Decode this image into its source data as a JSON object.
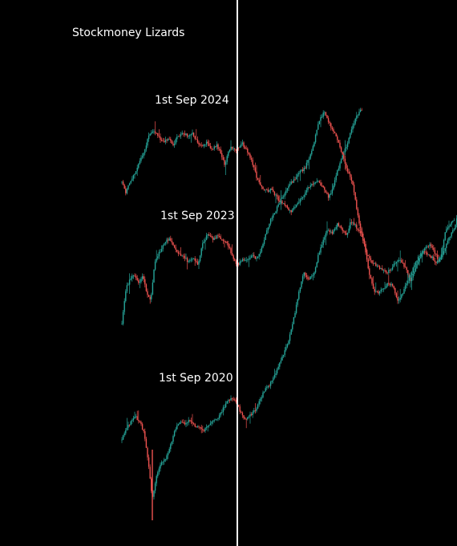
{
  "watermark": "Stockmoney Lizards",
  "colors": {
    "background": "#000000",
    "up": "#26a69a",
    "down": "#ef5350",
    "divider": "#ffffff"
  },
  "chart_data": {
    "type": "candlestick",
    "divider": "vertical white line marking each cycle's 1st September",
    "series": [
      {
        "name": "1st Sep 2024",
        "path": [
          [
            0,
            227
          ],
          [
            5,
            241
          ],
          [
            10,
            226
          ],
          [
            17,
            214
          ],
          [
            23,
            200
          ],
          [
            29,
            184
          ],
          [
            34,
            168
          ],
          [
            40,
            162
          ],
          [
            46,
            170
          ],
          [
            52,
            178
          ],
          [
            58,
            172
          ],
          [
            64,
            180
          ],
          [
            70,
            170
          ],
          [
            76,
            164
          ],
          [
            82,
            170
          ],
          [
            88,
            166
          ],
          [
            94,
            176
          ],
          [
            100,
            184
          ],
          [
            106,
            176
          ],
          [
            112,
            186
          ],
          [
            118,
            180
          ],
          [
            124,
            192
          ],
          [
            128,
            206
          ],
          [
            132,
            192
          ],
          [
            136,
            182
          ],
          [
            141,
            187
          ],
          [
            145,
            185
          ],
          [
            150,
            178
          ],
          [
            156,
            188
          ],
          [
            162,
            200
          ],
          [
            168,
            220
          ],
          [
            174,
            232
          ],
          [
            180,
            238
          ],
          [
            186,
            236
          ],
          [
            192,
            244
          ],
          [
            198,
            252
          ],
          [
            204,
            256
          ],
          [
            210,
            264
          ],
          [
            216,
            258
          ],
          [
            222,
            250
          ],
          [
            228,
            240
          ],
          [
            234,
            232
          ],
          [
            240,
            228
          ],
          [
            246,
            226
          ],
          [
            252,
            236
          ],
          [
            258,
            246
          ],
          [
            262,
            238
          ],
          [
            268,
            216
          ],
          [
            274,
            196
          ],
          [
            280,
            182
          ],
          [
            286,
            162
          ],
          [
            292,
            146
          ],
          [
            296,
            140
          ],
          [
            300,
            136
          ]
        ]
      },
      {
        "name": "1st Sep 2023",
        "path": [
          [
            0,
            404
          ],
          [
            5,
            360
          ],
          [
            10,
            348
          ],
          [
            15,
            342
          ],
          [
            21,
            354
          ],
          [
            26,
            342
          ],
          [
            31,
            366
          ],
          [
            36,
            374
          ],
          [
            41,
            328
          ],
          [
            47,
            314
          ],
          [
            53,
            304
          ],
          [
            59,
            296
          ],
          [
            65,
            308
          ],
          [
            71,
            316
          ],
          [
            77,
            320
          ],
          [
            83,
            326
          ],
          [
            89,
            322
          ],
          [
            95,
            330
          ],
          [
            101,
            302
          ],
          [
            107,
            292
          ],
          [
            113,
            298
          ],
          [
            119,
            294
          ],
          [
            125,
            298
          ],
          [
            131,
            304
          ],
          [
            137,
            316
          ],
          [
            141,
            326
          ],
          [
            145,
            330
          ],
          [
            150,
            322
          ],
          [
            156,
            326
          ],
          [
            162,
            318
          ],
          [
            168,
            322
          ],
          [
            174,
            310
          ],
          [
            180,
            290
          ],
          [
            186,
            272
          ],
          [
            192,
            262
          ],
          [
            198,
            250
          ],
          [
            204,
            238
          ],
          [
            210,
            228
          ],
          [
            216,
            224
          ],
          [
            222,
            214
          ],
          [
            228,
            210
          ],
          [
            234,
            196
          ],
          [
            240,
            176
          ],
          [
            246,
            150
          ],
          [
            252,
            140
          ],
          [
            258,
            152
          ],
          [
            264,
            164
          ],
          [
            270,
            176
          ],
          [
            276,
            196
          ],
          [
            282,
            214
          ],
          [
            288,
            230
          ],
          [
            294,
            268
          ],
          [
            300,
            296
          ],
          [
            306,
            318
          ],
          [
            312,
            326
          ],
          [
            318,
            332
          ],
          [
            324,
            336
          ],
          [
            330,
            340
          ],
          [
            336,
            334
          ],
          [
            342,
            326
          ],
          [
            348,
            324
          ],
          [
            354,
            334
          ],
          [
            360,
            350
          ],
          [
            366,
            334
          ],
          [
            372,
            320
          ],
          [
            378,
            310
          ],
          [
            384,
            304
          ],
          [
            390,
            314
          ],
          [
            396,
            326
          ],
          [
            402,
            310
          ],
          [
            408,
            296
          ],
          [
            414,
            286
          ],
          [
            418,
            272
          ]
        ]
      },
      {
        "name": "1st Sep 2020",
        "path": [
          [
            0,
            548
          ],
          [
            5,
            534
          ],
          [
            10,
            528
          ],
          [
            16,
            518
          ],
          [
            22,
            524
          ],
          [
            28,
            540
          ],
          [
            32,
            568
          ],
          [
            38,
            622
          ],
          [
            43,
            592
          ],
          [
            49,
            578
          ],
          [
            55,
            570
          ],
          [
            61,
            554
          ],
          [
            67,
            534
          ],
          [
            73,
            524
          ],
          [
            79,
            528
          ],
          [
            85,
            522
          ],
          [
            91,
            530
          ],
          [
            97,
            532
          ],
          [
            103,
            536
          ],
          [
            109,
            528
          ],
          [
            115,
            524
          ],
          [
            121,
            520
          ],
          [
            127,
            508
          ],
          [
            133,
            498
          ],
          [
            139,
            496
          ],
          [
            144,
            504
          ],
          [
            149,
            516
          ],
          [
            155,
            522
          ],
          [
            161,
            516
          ],
          [
            167,
            510
          ],
          [
            173,
            496
          ],
          [
            179,
            484
          ],
          [
            185,
            478
          ],
          [
            191,
            466
          ],
          [
            197,
            452
          ],
          [
            203,
            438
          ],
          [
            209,
            420
          ],
          [
            215,
            394
          ],
          [
            221,
            362
          ],
          [
            227,
            340
          ],
          [
            233,
            348
          ],
          [
            239,
            342
          ],
          [
            245,
            318
          ],
          [
            251,
            300
          ],
          [
            257,
            286
          ],
          [
            263,
            290
          ],
          [
            269,
            278
          ],
          [
            275,
            286
          ],
          [
            281,
            292
          ],
          [
            285,
            276
          ],
          [
            291,
            280
          ],
          [
            297,
            290
          ],
          [
            302,
            302
          ],
          [
            308,
            338
          ],
          [
            314,
            362
          ],
          [
            320,
            364
          ],
          [
            326,
            360
          ],
          [
            332,
            352
          ],
          [
            338,
            356
          ],
          [
            344,
            374
          ],
          [
            350,
            366
          ],
          [
            356,
            350
          ],
          [
            362,
            338
          ],
          [
            368,
            324
          ],
          [
            374,
            314
          ],
          [
            380,
            316
          ],
          [
            386,
            320
          ],
          [
            392,
            326
          ],
          [
            398,
            318
          ],
          [
            404,
            286
          ],
          [
            410,
            278
          ],
          [
            416,
            272
          ]
        ]
      }
    ]
  }
}
